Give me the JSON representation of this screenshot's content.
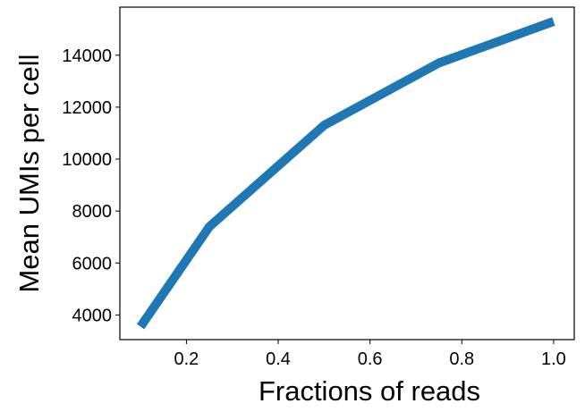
{
  "chart_data": {
    "type": "line",
    "title": "",
    "xlabel": "Fractions of reads",
    "ylabel": "Mean UMIs per cell",
    "x": [
      0.1,
      0.25,
      0.5,
      0.75,
      1.0
    ],
    "series": [
      {
        "values": [
          3550,
          7400,
          11300,
          13700,
          15300
        ],
        "color": "#1f77b4"
      }
    ],
    "xlim": [
      0.055,
      1.045
    ],
    "ylim": [
      3050,
      15850
    ],
    "xticks": [
      0.2,
      0.4,
      0.6,
      0.8,
      1.0
    ],
    "xtick_labels": [
      "0.2",
      "0.4",
      "0.6",
      "0.8",
      "1.0"
    ],
    "yticks": [
      4000,
      6000,
      8000,
      10000,
      12000,
      14000
    ],
    "ytick_labels": [
      "4000",
      "6000",
      "8000",
      "10000",
      "12000",
      "14000"
    ],
    "grid": false,
    "legend": "none"
  }
}
